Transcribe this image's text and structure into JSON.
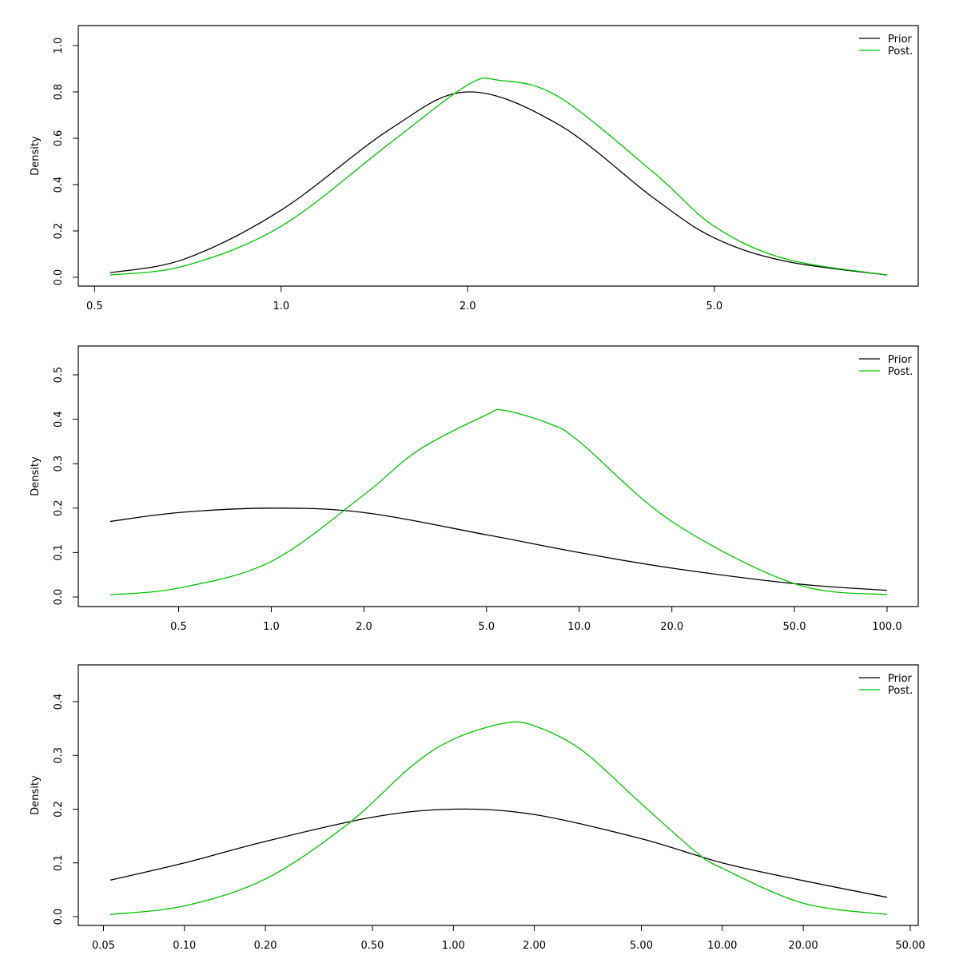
{
  "chart_data": [
    {
      "type": "line",
      "x_scale": "log",
      "xlim": [
        0.53,
        9.5
      ],
      "ylim": [
        0.0,
        1.1
      ],
      "ylabel": "Density",
      "x_ticks": [
        0.5,
        1.0,
        2.0,
        5.0
      ],
      "x_tick_labels": [
        "0.5",
        "1.0",
        "2.0",
        "5.0"
      ],
      "y_ticks": [
        0.0,
        0.2,
        0.4,
        0.6,
        0.8,
        1.0
      ],
      "y_tick_labels": [
        "0.0",
        "0.2",
        "0.4",
        "0.6",
        "0.8",
        "1.0"
      ],
      "legend_position": "top-right",
      "series": [
        {
          "name": "Prior",
          "color": "#000000",
          "x": [
            0.53,
            0.7,
            1.0,
            1.5,
            2.0,
            2.8,
            4.0,
            5.0,
            6.5,
            9.5
          ],
          "y": [
            0.02,
            0.08,
            0.29,
            0.64,
            0.8,
            0.66,
            0.34,
            0.17,
            0.07,
            0.01
          ]
        },
        {
          "name": "Post.",
          "color": "#00c400",
          "x": [
            0.53,
            0.7,
            1.0,
            1.5,
            2.0,
            2.25,
            2.8,
            4.0,
            5.0,
            6.5,
            9.5
          ],
          "y": [
            0.01,
            0.05,
            0.22,
            0.58,
            0.83,
            0.85,
            0.78,
            0.45,
            0.22,
            0.08,
            0.01
          ]
        }
      ]
    },
    {
      "type": "line",
      "x_scale": "log",
      "xlim": [
        0.3,
        100.0
      ],
      "ylim": [
        0.0,
        0.55
      ],
      "ylabel": "Density",
      "x_ticks": [
        0.5,
        1.0,
        2.0,
        5.0,
        10.0,
        20.0,
        50.0,
        100.0
      ],
      "x_tick_labels": [
        "0.5",
        "1.0",
        "2.0",
        "5.0",
        "10.0",
        "20.0",
        "50.0",
        "100.0"
      ],
      "y_ticks": [
        0.0,
        0.1,
        0.2,
        0.3,
        0.4,
        0.5
      ],
      "y_tick_labels": [
        "0.0",
        "0.1",
        "0.2",
        "0.3",
        "0.4",
        "0.5"
      ],
      "legend_position": "top-right",
      "series": [
        {
          "name": "Prior",
          "color": "#000000",
          "x": [
            0.3,
            0.5,
            1.0,
            2.0,
            5.0,
            10.0,
            20.0,
            50.0,
            100.0
          ],
          "y": [
            0.17,
            0.19,
            0.2,
            0.19,
            0.14,
            0.1,
            0.065,
            0.03,
            0.015
          ]
        },
        {
          "name": "Post.",
          "color": "#00c400",
          "x": [
            0.3,
            0.5,
            1.0,
            2.0,
            3.0,
            5.0,
            5.7,
            8.0,
            10.0,
            20.0,
            50.0,
            100.0
          ],
          "y": [
            0.005,
            0.02,
            0.08,
            0.23,
            0.33,
            0.41,
            0.42,
            0.39,
            0.35,
            0.17,
            0.03,
            0.005
          ]
        }
      ]
    },
    {
      "type": "line",
      "x_scale": "log",
      "xlim": [
        0.053,
        41.0
      ],
      "ylim": [
        0.0,
        0.48
      ],
      "ylabel": "Density",
      "x_ticks": [
        0.05,
        0.1,
        0.2,
        0.5,
        1.0,
        2.0,
        5.0,
        10.0,
        20.0,
        50.0
      ],
      "x_tick_labels": [
        "0.05",
        "0.10",
        "0.20",
        "0.50",
        "1.00",
        "2.00",
        "5.00",
        "10.00",
        "20.00",
        "50.00"
      ],
      "y_ticks": [
        0.0,
        0.1,
        0.2,
        0.3,
        0.4
      ],
      "y_tick_labels": [
        "0.0",
        "0.1",
        "0.2",
        "0.3",
        "0.4"
      ],
      "legend_position": "top-right",
      "series": [
        {
          "name": "Prior",
          "color": "#000000",
          "x": [
            0.053,
            0.1,
            0.2,
            0.5,
            1.0,
            2.0,
            5.0,
            10.0,
            20.0,
            41.0
          ],
          "y": [
            0.068,
            0.1,
            0.14,
            0.185,
            0.2,
            0.19,
            0.145,
            0.1,
            0.067,
            0.036
          ]
        },
        {
          "name": "Post.",
          "color": "#00c400",
          "x": [
            0.053,
            0.1,
            0.2,
            0.4,
            0.7,
            1.0,
            1.55,
            2.0,
            3.0,
            5.0,
            8.0,
            10.0,
            20.0,
            41.0
          ],
          "y": [
            0.004,
            0.02,
            0.07,
            0.17,
            0.28,
            0.33,
            0.36,
            0.355,
            0.31,
            0.21,
            0.12,
            0.09,
            0.025,
            0.004
          ]
        }
      ]
    }
  ]
}
